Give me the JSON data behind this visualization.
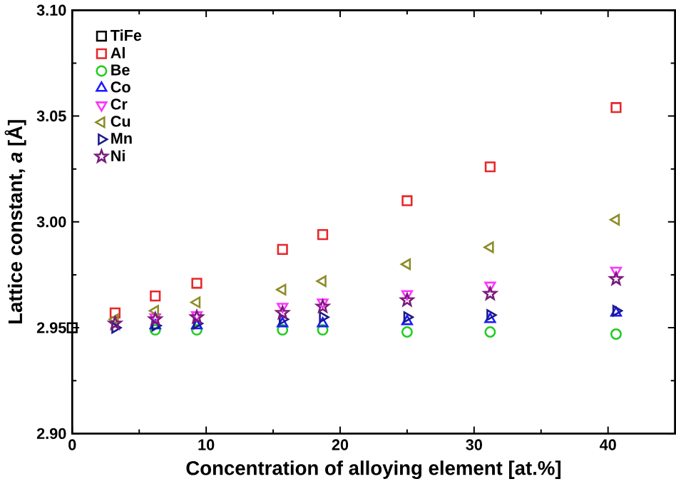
{
  "chart_data": {
    "type": "scatter",
    "xlabel": "Concentration of alloying element [at.%]",
    "ylabel": "Lattice constant, *a* [Å]",
    "xlim": [
      0,
      45
    ],
    "xticks": [
      0,
      10,
      20,
      30,
      40
    ],
    "ylim": [
      2.9,
      3.1
    ],
    "yticks": [
      {
        "value": 2.9,
        "label": "2.90"
      },
      {
        "value": 2.95,
        "label": "2.95"
      },
      {
        "value": 3.0,
        "label": "3.00"
      },
      {
        "value": 3.05,
        "label": "3.05"
      },
      {
        "value": 3.1,
        "label": "3.10"
      }
    ],
    "legend": "top left",
    "grid": false,
    "series": [
      {
        "name": "TiFe",
        "color": "#000000",
        "marker": "square",
        "x": [
          0
        ],
        "values": [
          2.95
        ]
      },
      {
        "name": "Al",
        "color": "#e8262a",
        "marker": "square",
        "x": [
          3.2,
          6.2,
          9.3,
          15.7,
          18.7,
          25,
          31.2,
          40.6
        ],
        "values": [
          2.957,
          2.965,
          2.971,
          2.987,
          2.994,
          3.01,
          3.026,
          3.054
        ]
      },
      {
        "name": "Be",
        "color": "#22cc22",
        "marker": "circle",
        "x": [
          6.2,
          9.3,
          15.7,
          18.7,
          25,
          31.2,
          40.6
        ],
        "values": [
          2.949,
          2.949,
          2.949,
          2.949,
          2.948,
          2.948,
          2.947
        ]
      },
      {
        "name": "Co",
        "color": "#1a1aff",
        "marker": "triangle",
        "x": [
          6.2,
          9.3,
          15.7,
          18.7,
          25,
          31.2,
          40.6
        ],
        "values": [
          2.951,
          2.951,
          2.952,
          2.952,
          2.953,
          2.954,
          2.957
        ]
      },
      {
        "name": "Cr",
        "color": "#ff33ff",
        "marker": "triangle-down",
        "x": [
          6.2,
          9.3,
          15.7,
          18.7,
          25,
          31.2,
          40.6
        ],
        "values": [
          2.955,
          2.956,
          2.96,
          2.962,
          2.966,
          2.97,
          2.977
        ]
      },
      {
        "name": "Cu",
        "color": "#8c8c28",
        "marker": "triangle-left",
        "x": [
          3.2,
          6.2,
          9.3,
          15.7,
          18.7,
          25,
          31.2,
          40.6
        ],
        "values": [
          2.954,
          2.958,
          2.962,
          2.968,
          2.972,
          2.98,
          2.988,
          3.001
        ]
      },
      {
        "name": "Mn",
        "color": "#1a1a8c",
        "marker": "triangle-right",
        "x": [
          3.2,
          6.2,
          9.3,
          15.7,
          18.7,
          25,
          31.2,
          40.6
        ],
        "values": [
          2.95,
          2.951,
          2.952,
          2.954,
          2.955,
          2.955,
          2.956,
          2.958
        ]
      },
      {
        "name": "Ni",
        "color": "#7a1a7a",
        "marker": "star",
        "x": [
          3.2,
          6.2,
          9.3,
          15.7,
          18.7,
          25,
          31.2,
          40.6
        ],
        "values": [
          2.952,
          2.954,
          2.955,
          2.957,
          2.96,
          2.963,
          2.966,
          2.973
        ]
      }
    ]
  }
}
